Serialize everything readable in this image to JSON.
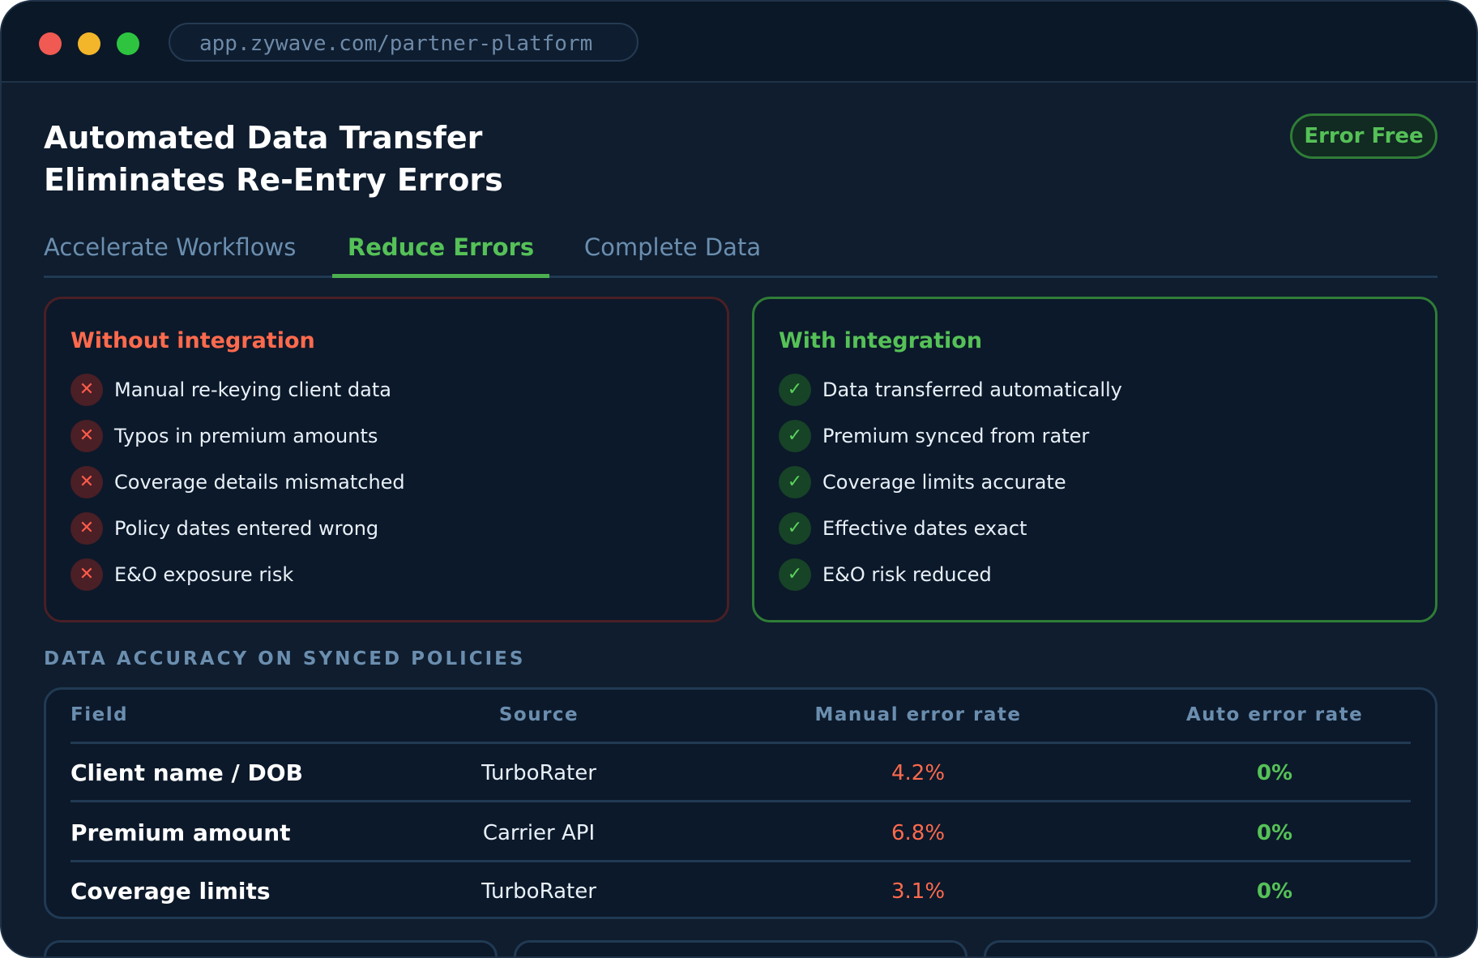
{
  "browser": {
    "url": "app.zywave.com/partner-platform"
  },
  "header": {
    "title_line1": "Automated Data Transfer",
    "title_line2": "Eliminates Re-Entry Errors",
    "badge": "Error Free"
  },
  "tabs": [
    {
      "label": "Accelerate Workflows",
      "active": false
    },
    {
      "label": "Reduce Errors",
      "active": true
    },
    {
      "label": "Complete Data",
      "active": false
    }
  ],
  "without": {
    "title": "Without integration",
    "icon": "x-icon",
    "items": [
      "Manual re-keying client data",
      "Typos in premium amounts",
      "Coverage details mismatched",
      "Policy dates entered wrong",
      "E&O exposure risk"
    ]
  },
  "with": {
    "title": "With integration",
    "icon": "check-icon",
    "items": [
      "Data transferred automatically",
      "Premium synced from rater",
      "Coverage limits accurate",
      "Effective dates exact",
      "E&O risk reduced"
    ]
  },
  "accuracy": {
    "heading": "DATA ACCURACY ON SYNCED POLICIES",
    "columns": [
      "Field",
      "Source",
      "Manual error rate",
      "Auto error rate"
    ],
    "rows": [
      {
        "field": "Client name / DOB",
        "source": "TurboRater",
        "manual": "4.2%",
        "auto": "0%"
      },
      {
        "field": "Premium amount",
        "source": "Carrier API",
        "manual": "6.8%",
        "auto": "0%"
      },
      {
        "field": "Coverage limits",
        "source": "TurboRater",
        "manual": "3.1%",
        "auto": "0%"
      }
    ]
  },
  "colors": {
    "background": "#0f1d2e",
    "accent_green": "#55c157",
    "accent_red": "#ff6a4d",
    "muted_blue": "#6b8eaf"
  }
}
